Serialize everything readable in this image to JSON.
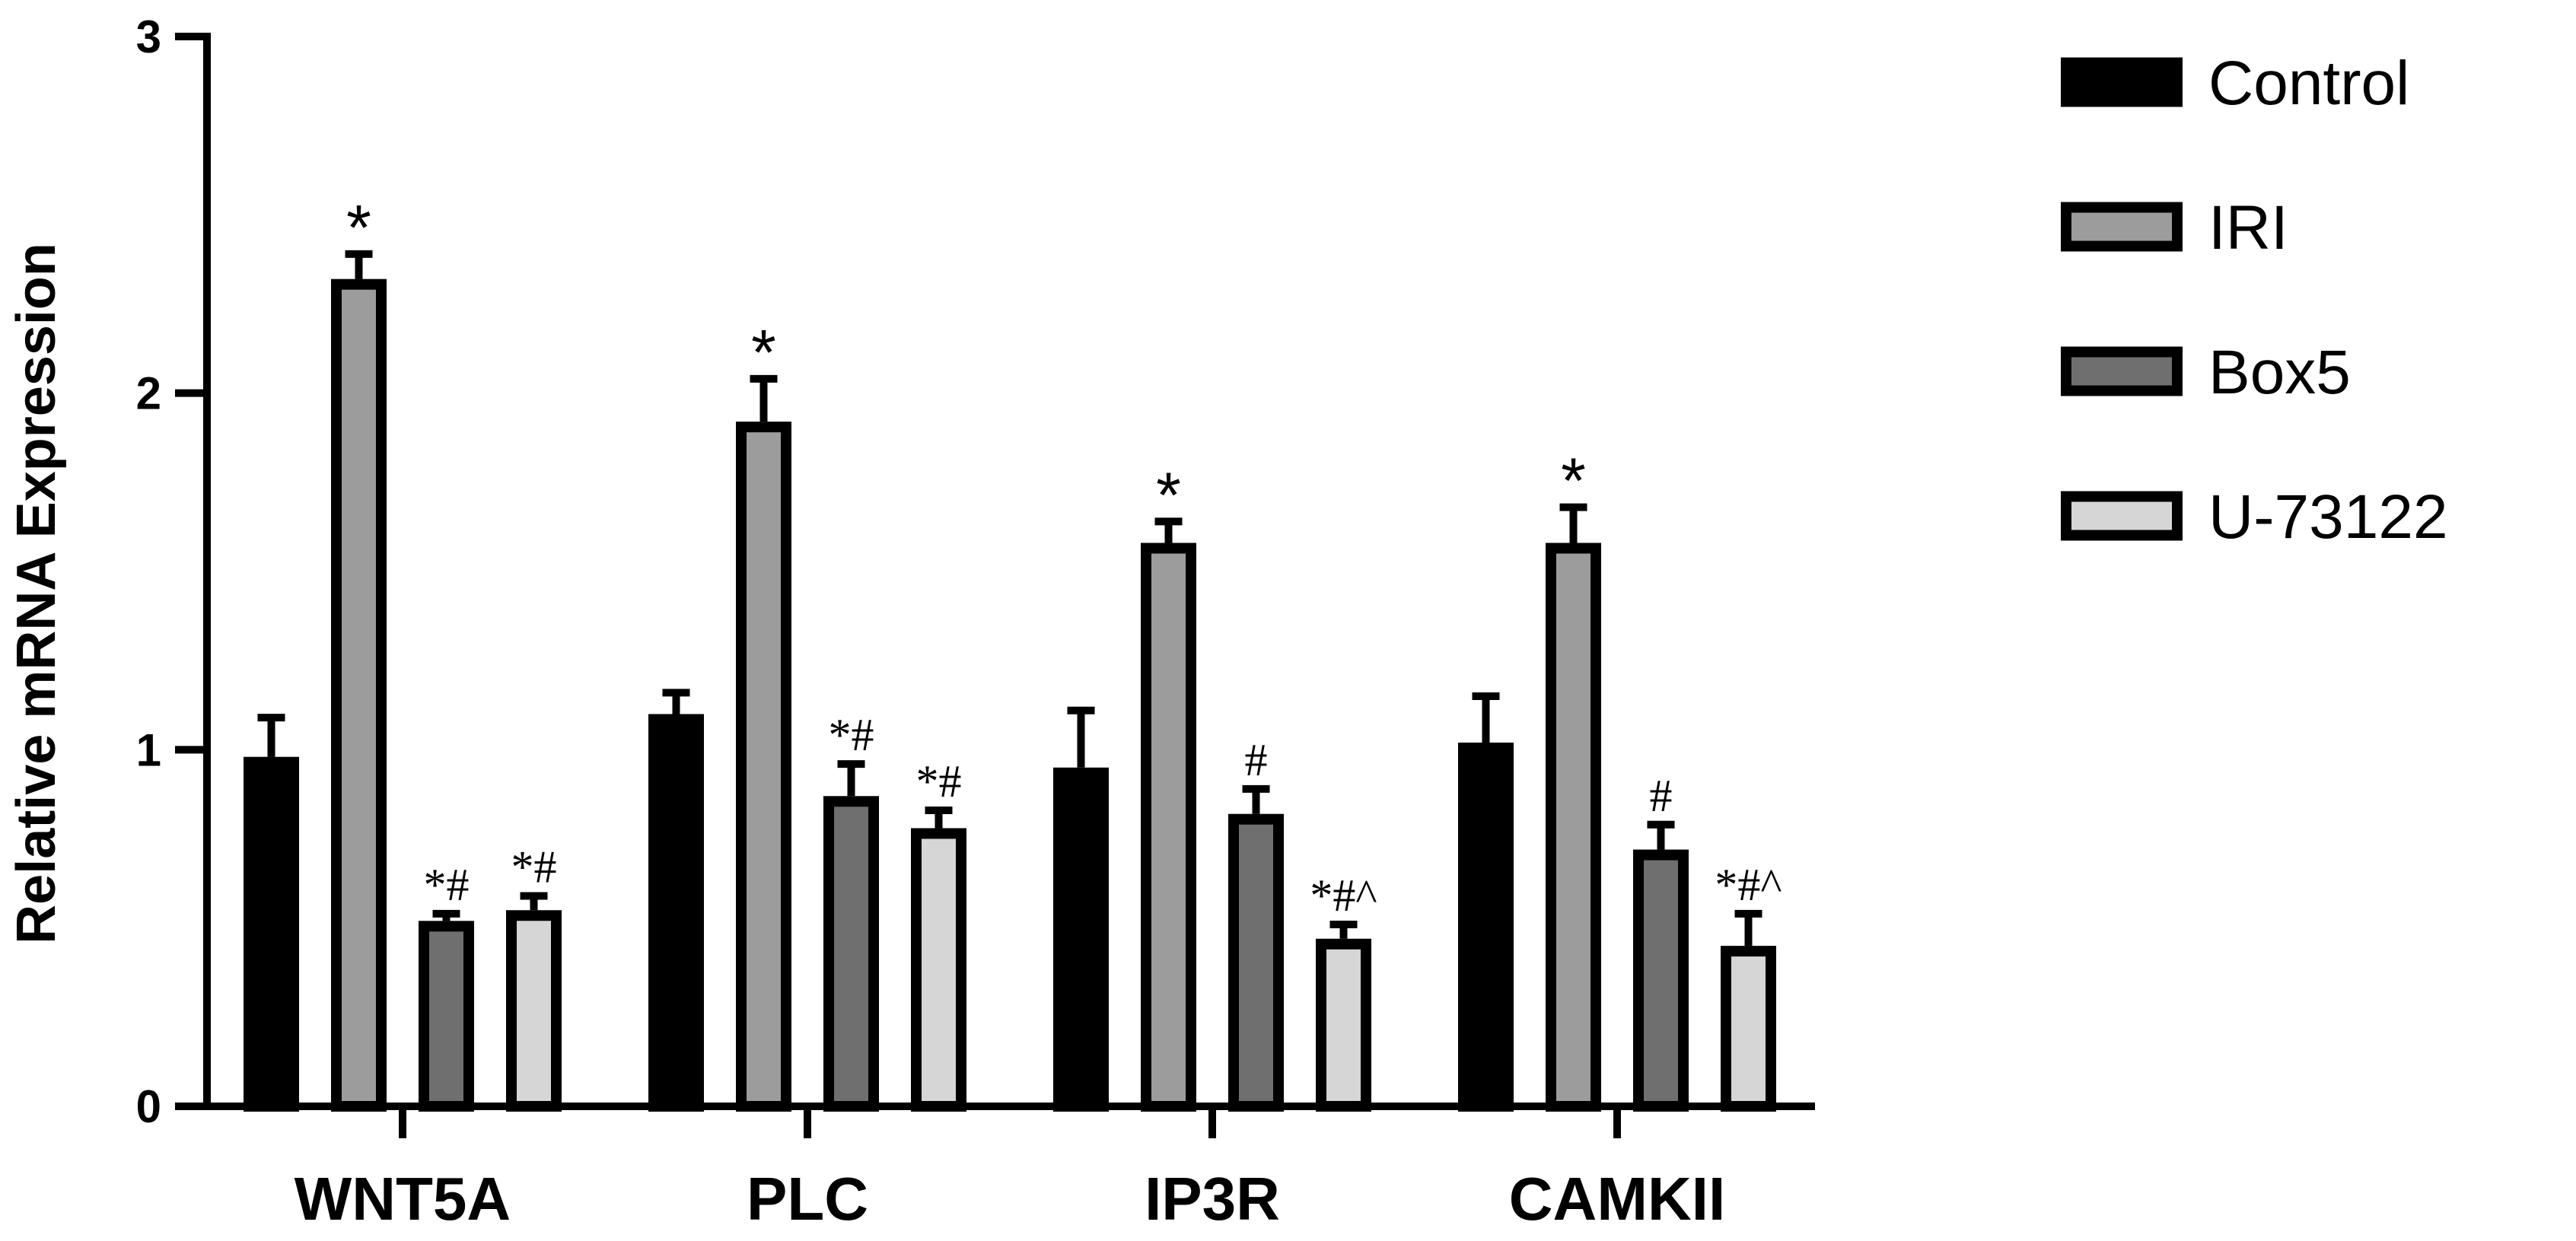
{
  "chart_data": {
    "type": "bar",
    "ylabel": "Relative mRNA Expression",
    "ylim": [
      0,
      3
    ],
    "yticks": [
      0,
      1,
      2,
      3
    ],
    "categories": [
      "WNT5A",
      "PLC",
      "IP3R",
      "CAMKII"
    ],
    "legend_position": "right",
    "series": [
      {
        "name": "Control",
        "color": "#000000",
        "values": [
          0.98,
          1.1,
          0.95,
          1.02
        ],
        "errors": [
          0.11,
          0.06,
          0.16,
          0.13
        ],
        "annotations": [
          "",
          "",
          "",
          ""
        ]
      },
      {
        "name": "IRI",
        "color": "#9c9c9c",
        "values": [
          2.32,
          1.92,
          1.58,
          1.58
        ],
        "errors": [
          0.07,
          0.12,
          0.06,
          0.1
        ],
        "annotations": [
          "*",
          "*",
          "*",
          "*"
        ]
      },
      {
        "name": "Box5",
        "color": "#6f6f6f",
        "values": [
          0.52,
          0.87,
          0.82,
          0.72
        ],
        "errors": [
          0.02,
          0.09,
          0.07,
          0.07
        ],
        "annotations": [
          "*#",
          "*#",
          "#",
          "#"
        ]
      },
      {
        "name": "U-73122",
        "color": "#d6d6d6",
        "values": [
          0.55,
          0.78,
          0.47,
          0.45
        ],
        "errors": [
          0.04,
          0.05,
          0.04,
          0.09
        ],
        "annotations": [
          "*#",
          "*#",
          "*#^",
          "*#^"
        ]
      }
    ]
  }
}
